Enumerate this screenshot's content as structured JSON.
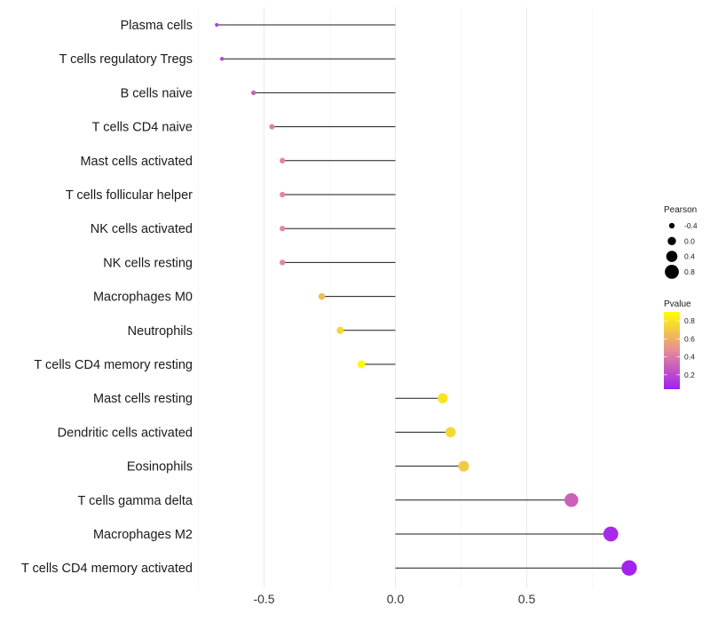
{
  "chart_data": {
    "type": "lollipop",
    "title": "",
    "xlabel": "",
    "ylabel": "",
    "xlim": [
      -0.75,
      0.9
    ],
    "grid": true,
    "xticks": [
      -0.5,
      0.0,
      0.5
    ],
    "xtick_labels": [
      "-0.5",
      "0.0",
      "0.5"
    ],
    "categories": [
      "Plasma cells",
      "T cells regulatory  Tregs",
      "B cells naive",
      "T cells CD4 naive",
      "Mast cells activated",
      "T cells follicular helper",
      "NK cells activated",
      "NK cells resting",
      "Macrophages M0",
      "Neutrophils",
      "T cells CD4 memory resting",
      "Mast cells resting",
      "Dendritic cells activated",
      "Eosinophils",
      "T cells gamma delta",
      "Macrophages M2",
      "T cells CD4 memory activated"
    ],
    "pearson": [
      -0.68,
      -0.66,
      -0.54,
      -0.47,
      -0.43,
      -0.43,
      -0.43,
      -0.43,
      -0.28,
      -0.21,
      -0.13,
      0.18,
      0.21,
      0.26,
      0.67,
      0.82,
      0.89
    ],
    "pvalue": [
      0.15,
      0.2,
      0.3,
      0.42,
      0.45,
      0.45,
      0.45,
      0.45,
      0.65,
      0.75,
      0.88,
      0.8,
      0.75,
      0.7,
      0.3,
      0.08,
      0.05
    ],
    "legend_size": {
      "title": "Pearson",
      "breaks": [
        -0.4,
        0.0,
        0.4,
        0.8
      ],
      "labels": [
        "-0.4",
        "0.0",
        "0.4",
        "0.8"
      ],
      "position": "right"
    },
    "legend_color": {
      "title": "Pvalue",
      "breaks": [
        0.2,
        0.4,
        0.6,
        0.8
      ],
      "labels": [
        "0.2",
        "0.4",
        "0.6",
        "0.8"
      ],
      "range": [
        0.04,
        0.9
      ],
      "low_color": "#a020f0",
      "high_color": "#ffff00",
      "position": "right"
    }
  }
}
